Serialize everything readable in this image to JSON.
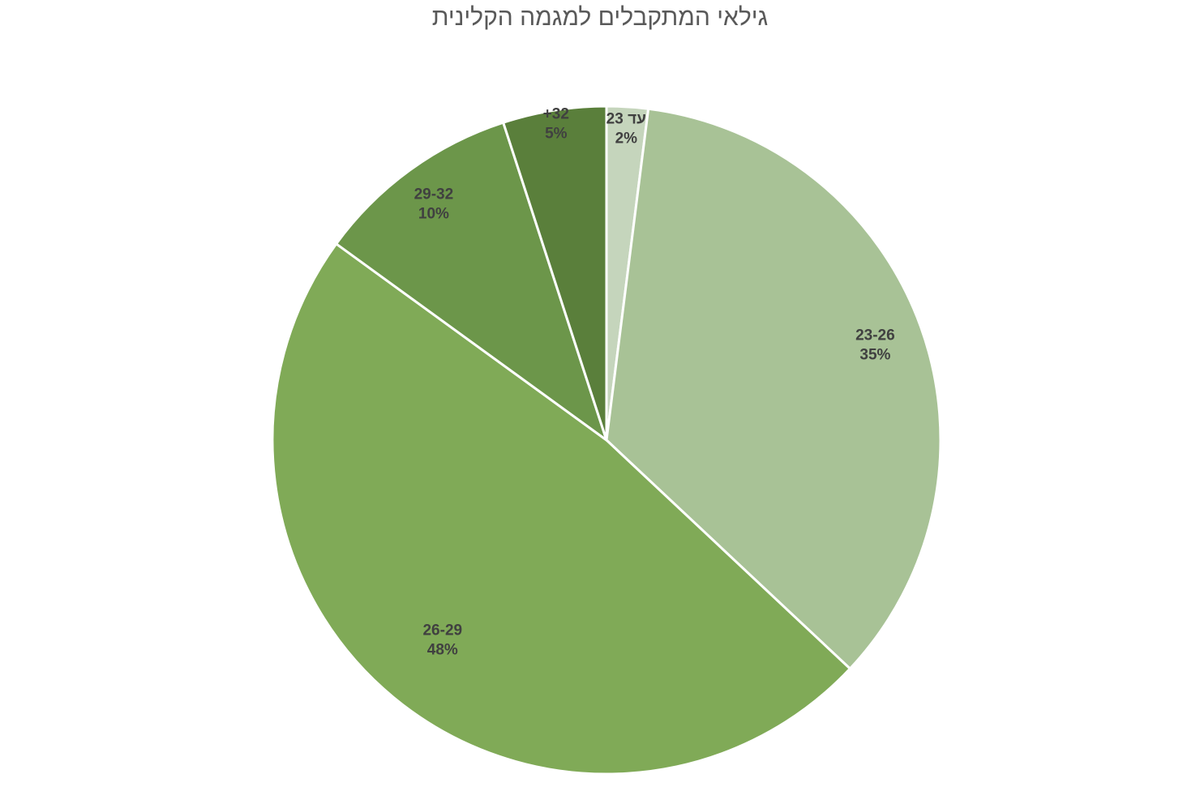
{
  "chart_data": {
    "type": "pie",
    "title": "גילאי המתקבלים למגמה הקלינית",
    "start_angle": "12 o'clock",
    "direction": "clockwise",
    "slice_border_color": "#ffffff",
    "label_color": "#404040",
    "slices": [
      {
        "label": "עד 23",
        "value": 2,
        "value_label": "2%",
        "color": "#c5d5bc"
      },
      {
        "label": "23-26",
        "value": 35,
        "value_label": "35%",
        "color": "#a8c296"
      },
      {
        "label": "26-29",
        "value": 48,
        "value_label": "48%",
        "color": "#80aa57"
      },
      {
        "label": "29-32",
        "value": 10,
        "value_label": "10%",
        "color": "#6c964a"
      },
      {
        "label": "+32",
        "value": 5,
        "value_label": "5%",
        "color": "#5a7f3b"
      }
    ]
  }
}
